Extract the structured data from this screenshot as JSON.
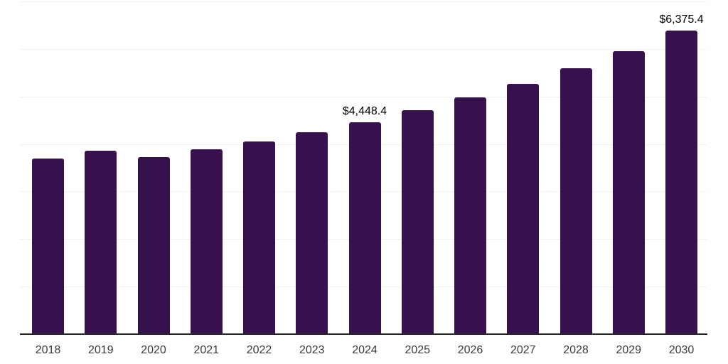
{
  "chart_data": {
    "type": "bar",
    "title": "",
    "xlabel": "",
    "ylabel": "",
    "categories": [
      "2018",
      "2019",
      "2020",
      "2021",
      "2022",
      "2023",
      "2024",
      "2025",
      "2026",
      "2027",
      "2028",
      "2029",
      "2030"
    ],
    "values": [
      3680,
      3845,
      3710,
      3875,
      4040,
      4230,
      4448.4,
      4695,
      4960,
      5245,
      5575,
      5945,
      6375.4
    ],
    "annotations": [
      {
        "category": "2024",
        "text": "$4,448.4"
      },
      {
        "category": "2030",
        "text": "$6,375.4"
      }
    ],
    "ylim": [
      0,
      7000
    ],
    "gridline_interval": 1000,
    "grid": "horizontal",
    "legend": "none",
    "y_axis_tick_labels_visible": false,
    "bar_color": "#36114E",
    "gridline_color": "#F1F1F1",
    "axis_line_color": "#262626",
    "tick_label_color": "#3A3A3A",
    "value_label_color": "#000000"
  }
}
